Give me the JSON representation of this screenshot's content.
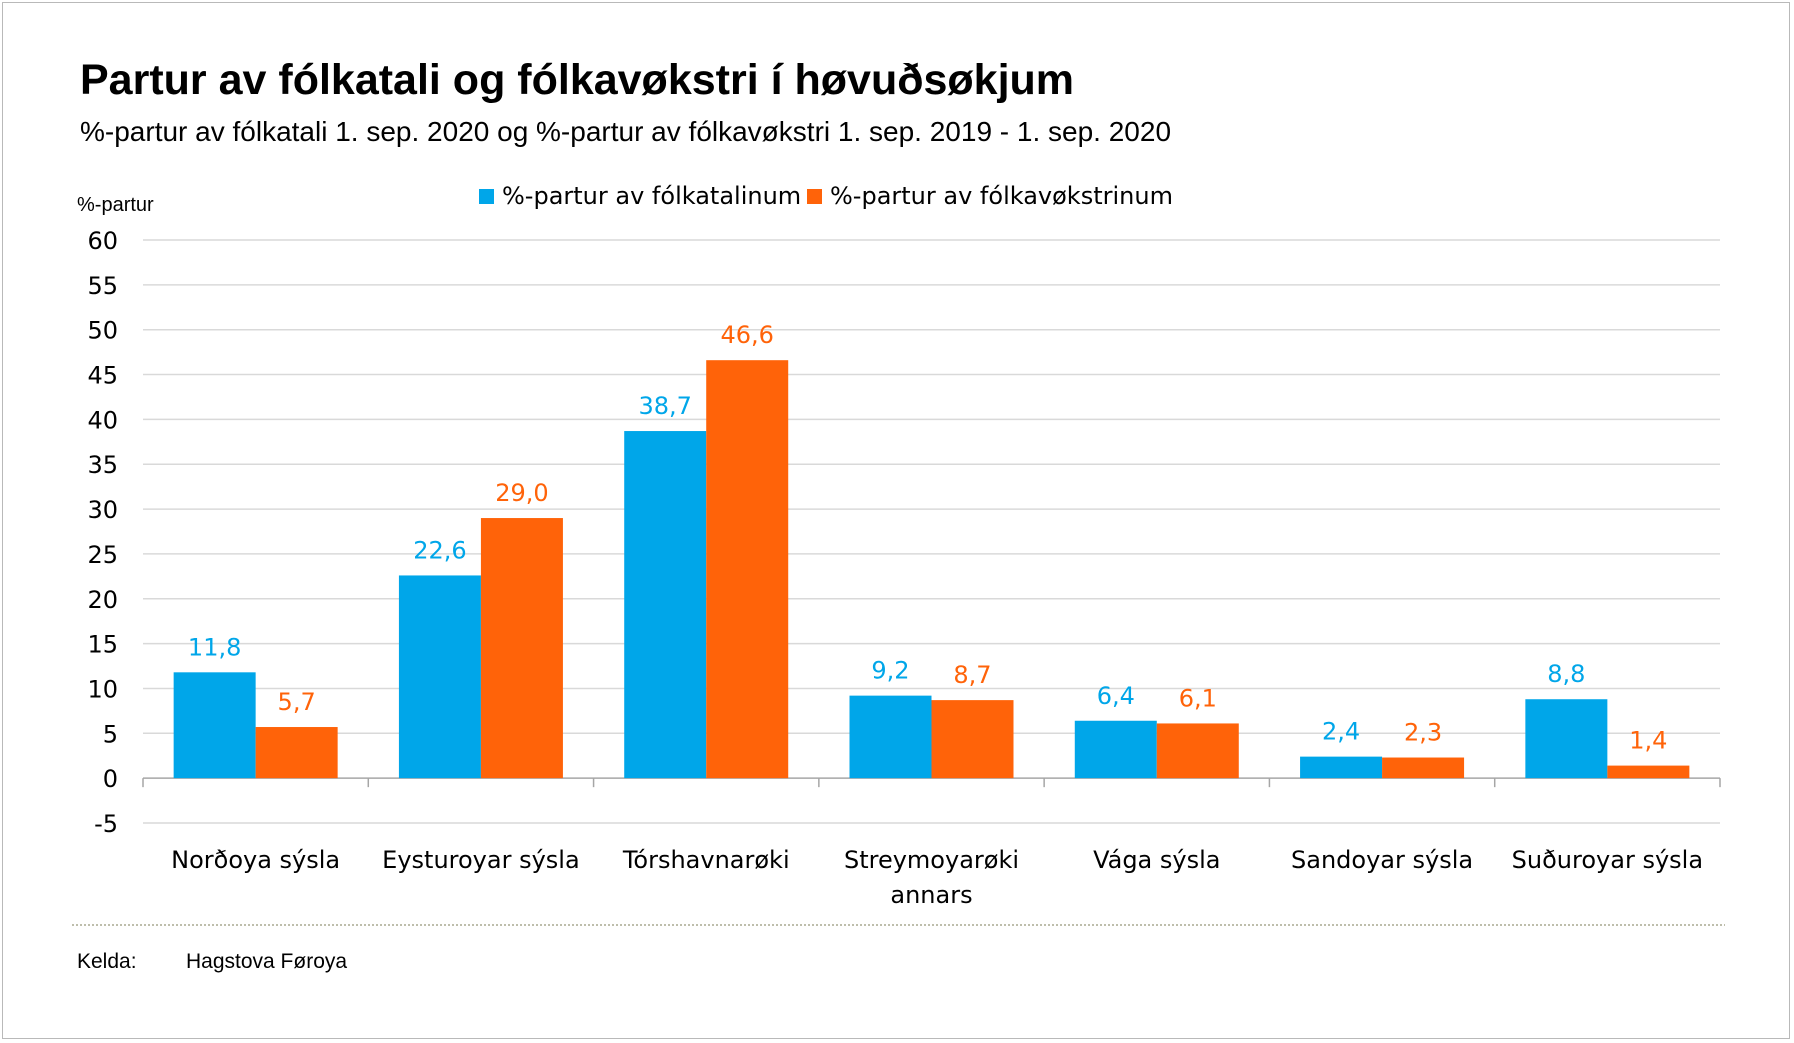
{
  "title": "Partur av fólkatali og fólkavøkstri í høvuðsøkjum",
  "subtitle": "%-partur av fólkatali 1. sep. 2020 og %-partur av fólkavøkstri 1. sep. 2019 - 1. sep. 2020",
  "source": {
    "label": "Kelda:",
    "value": "Hagstova Føroya"
  },
  "colors": {
    "series1": "#00A6E9",
    "series2": "#FF6309",
    "grid": "#d9d9d9",
    "axis": "#a6a6a6"
  },
  "chart_data": {
    "type": "bar",
    "ylabel": "%-partur",
    "ylim": [
      -5,
      60
    ],
    "yticks": [
      "60",
      "55",
      "50",
      "45",
      "40",
      "35",
      "30",
      "25",
      "20",
      "15",
      "10",
      "5",
      "0",
      "-5"
    ],
    "categories": [
      [
        "Norðoya sýsla"
      ],
      [
        "Eysturoyar sýsla"
      ],
      [
        "Tórshavnarøki"
      ],
      [
        "Streymoyarøki",
        "annars"
      ],
      [
        "Vága sýsla"
      ],
      [
        "Sandoyar sýsla"
      ],
      [
        "Suðuroyar sýsla"
      ]
    ],
    "series": [
      {
        "name": "%-partur av fólkatalinum",
        "values": [
          11.8,
          22.6,
          38.7,
          9.2,
          6.4,
          2.4,
          8.8
        ],
        "labels": [
          "11,8",
          "22,6",
          "38,7",
          "9,2",
          "6,4",
          "2,4",
          "8,8"
        ]
      },
      {
        "name": "%-partur av fólkavøkstrinum",
        "values": [
          5.7,
          29.0,
          46.6,
          8.7,
          6.1,
          2.3,
          1.4
        ],
        "labels": [
          "5,7",
          "29,0",
          "46,6",
          "8,7",
          "6,1",
          "2,3",
          "1,4"
        ]
      }
    ],
    "legend_position": "top-center",
    "grid": true
  }
}
